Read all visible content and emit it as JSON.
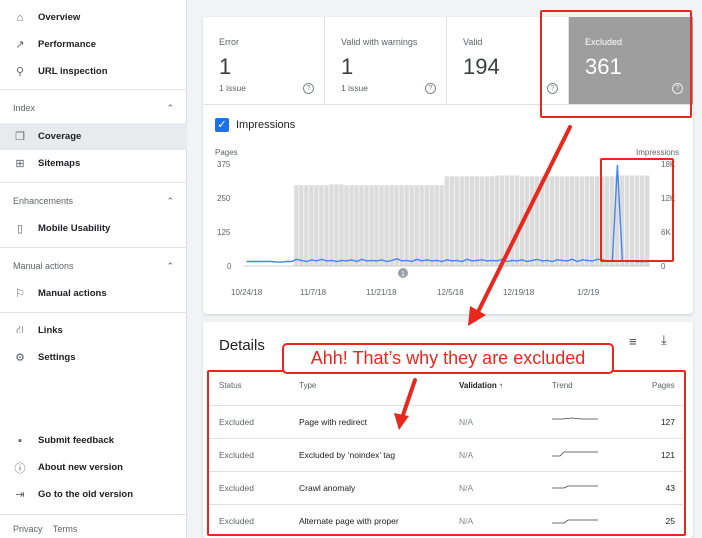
{
  "sidebar": {
    "top_items": [
      {
        "label": "Overview",
        "icon": "home-icon"
      },
      {
        "label": "Performance",
        "icon": "trend-icon"
      },
      {
        "label": "URL inspection",
        "icon": "search-icon"
      }
    ],
    "sections": [
      {
        "title": "Index",
        "items": [
          {
            "label": "Coverage",
            "icon": "coverage-icon",
            "active": true
          },
          {
            "label": "Sitemaps",
            "icon": "sitemap-icon"
          }
        ]
      },
      {
        "title": "Enhancements",
        "items": [
          {
            "label": "Mobile Usability",
            "icon": "phone-icon"
          }
        ]
      },
      {
        "title": "Manual actions",
        "items": [
          {
            "label": "Manual actions",
            "icon": "flag-icon"
          }
        ]
      }
    ],
    "other_items": [
      {
        "label": "Links",
        "icon": "links-icon"
      },
      {
        "label": "Settings",
        "icon": "gear-icon"
      }
    ],
    "bottom_items": [
      {
        "label": "Submit feedback",
        "icon": "feedback-icon"
      },
      {
        "label": "About new version",
        "icon": "info-icon"
      },
      {
        "label": "Go to the old version",
        "icon": "exit-icon"
      }
    ],
    "footer": {
      "privacy": "Privacy",
      "terms": "Terms"
    }
  },
  "stats": {
    "error": {
      "label": "Error",
      "value": "1",
      "sub": "1 issue"
    },
    "warnings": {
      "label": "Valid with warnings",
      "value": "1",
      "sub": "1 issue"
    },
    "valid": {
      "label": "Valid",
      "value": "194"
    },
    "excluded": {
      "label": "Excluded",
      "value": "361"
    }
  },
  "impressions_toggle": {
    "label": "Impressions",
    "checked": true
  },
  "chart_data": {
    "type": "bar",
    "left_axis_label": "Pages",
    "right_axis_label": "Impressions",
    "y_ticks": [
      "375",
      "250",
      "125",
      "0"
    ],
    "y2_ticks": [
      "18K",
      "12K",
      "6K",
      "0"
    ],
    "x_ticks": [
      "10/24/18",
      "11/7/18",
      "11/21/18",
      "12/5/18",
      "12/19/18",
      "1/2/19"
    ],
    "annotation_marker": "1",
    "series": [
      {
        "name": "Pages",
        "values": [
          0,
          0,
          0,
          0,
          0,
          0,
          0,
          0,
          0,
          0,
          300,
          300,
          300,
          300,
          300,
          300,
          300,
          303,
          303,
          303,
          300,
          300,
          300,
          300,
          300,
          300,
          300,
          300,
          300,
          300,
          300,
          300,
          300,
          300,
          300,
          300,
          300,
          300,
          300,
          300,
          333,
          333,
          333,
          333,
          333,
          333,
          333,
          333,
          333,
          333,
          336,
          336,
          336,
          336,
          336,
          333,
          333,
          333,
          333,
          333,
          333,
          333,
          333,
          333,
          333,
          333,
          333,
          333,
          333,
          333,
          333,
          333,
          333,
          333,
          336,
          336,
          336,
          336,
          336,
          336,
          336
        ]
      },
      {
        "name": "Impressions",
        "values": [
          800,
          800,
          800,
          800,
          800,
          800,
          700,
          700,
          800,
          800,
          1200,
          1000,
          800,
          1100,
          900,
          1200,
          900,
          1000,
          800,
          1000,
          900,
          1100,
          800,
          1200,
          900,
          1000,
          900,
          1100,
          800,
          1000,
          1300,
          900,
          1000,
          800,
          1200,
          900,
          1100,
          900,
          1000,
          800,
          1100,
          900,
          1000,
          800,
          1200,
          900,
          1000,
          1100,
          900,
          1000,
          900,
          1200,
          800,
          1000,
          900,
          1100,
          800,
          1000,
          1200,
          900,
          1000,
          800,
          1100,
          1000,
          900,
          1200,
          800,
          1100,
          1000,
          900,
          1200,
          1100,
          900,
          1000,
          18000,
          900,
          800,
          900,
          800,
          800,
          800
        ]
      }
    ]
  },
  "details": {
    "title": "Details",
    "callout": "Ahh! That’s why they are excluded",
    "columns": {
      "status": "Status",
      "type": "Type",
      "validation": "Validation",
      "trend": "Trend",
      "pages": "Pages"
    },
    "rows": [
      {
        "status": "Excluded",
        "type": "Page with redirect",
        "validation": "N/A",
        "pages": "127"
      },
      {
        "status": "Excluded",
        "type": "Excluded by ‘noindex’ tag",
        "validation": "N/A",
        "pages": "121"
      },
      {
        "status": "Excluded",
        "type": "Crawl anomaly",
        "validation": "N/A",
        "pages": "43"
      },
      {
        "status": "Excluded",
        "type": "Alternate page with proper",
        "validation": "N/A",
        "pages": "25"
      }
    ]
  },
  "colors": {
    "accent": "#1a73e8",
    "excluded": "#9e9e9e",
    "annotation_red": "#e8281c"
  }
}
